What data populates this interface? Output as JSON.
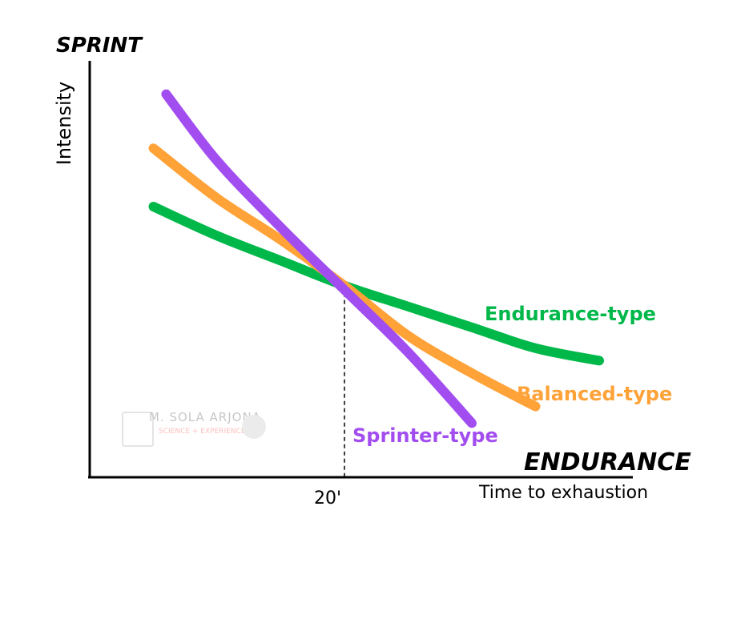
{
  "chart_data": {
    "type": "line",
    "top_label": "SPRINT",
    "bottom_right_label": "ENDURANCE",
    "xlabel": "Time to exhaustion",
    "ylabel": "Intensity",
    "xlim": [
      0,
      50
    ],
    "ylim": [
      0,
      100
    ],
    "reference_line": {
      "x": 20,
      "label": "20'"
    },
    "series": [
      {
        "name": "Endurance-type",
        "color": "#00b84a",
        "x": [
          5,
          10,
          15,
          20,
          25,
          30,
          35,
          40
        ],
        "y": [
          65,
          58,
          52,
          46,
          41,
          36,
          31,
          28
        ]
      },
      {
        "name": "Balanced-type",
        "color": "#ffa238",
        "x": [
          5,
          10,
          15,
          20,
          25,
          30,
          35
        ],
        "y": [
          79,
          67,
          57,
          46,
          34,
          25,
          17
        ]
      },
      {
        "name": "Sprinter-type",
        "color": "#a24df0",
        "x": [
          6,
          10,
          15,
          20,
          25,
          30
        ],
        "y": [
          92,
          76,
          60,
          45,
          30,
          13
        ]
      }
    ]
  },
  "watermark": {
    "name": "M. SOLA ARJONA",
    "tagline": "SCIENCE + EXPERIENCE"
  }
}
